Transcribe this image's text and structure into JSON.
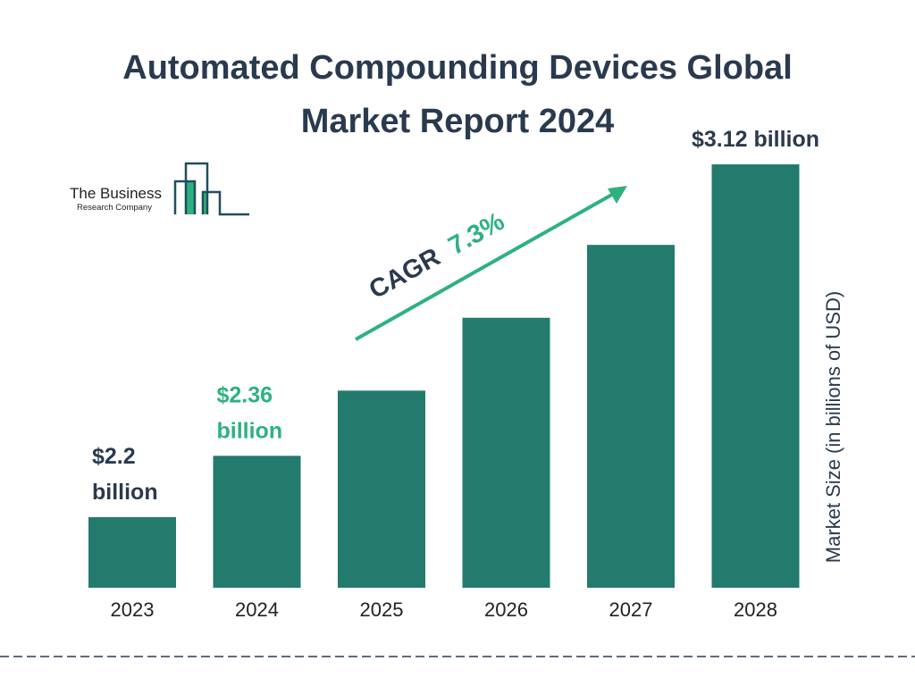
{
  "chart_data": {
    "type": "bar",
    "title_lines": [
      "Automated Compounding Devices Global",
      "Market Report 2024"
    ],
    "categories": [
      "2023",
      "2024",
      "2025",
      "2026",
      "2027",
      "2028"
    ],
    "values": [
      2.2,
      2.36,
      2.53,
      2.72,
      2.91,
      3.12
    ],
    "data_labels": [
      {
        "index": 0,
        "lines": [
          "$2.2",
          "billion"
        ],
        "highlight": false
      },
      {
        "index": 1,
        "lines": [
          "$2.36",
          "billion"
        ],
        "highlight": true
      },
      {
        "index": 5,
        "lines": [
          "$3.12 billion"
        ],
        "highlight": false
      }
    ],
    "ylabel": "Market Size (in billions of USD)",
    "cagr": {
      "label": "CAGR",
      "value": "7.3%"
    },
    "grid": false,
    "colors": {
      "bar": "#237b6d",
      "accent": "#2fb17f",
      "text": "#2a3a4e"
    }
  },
  "logo": {
    "line1": "The Business",
    "line2": "Research Company"
  }
}
